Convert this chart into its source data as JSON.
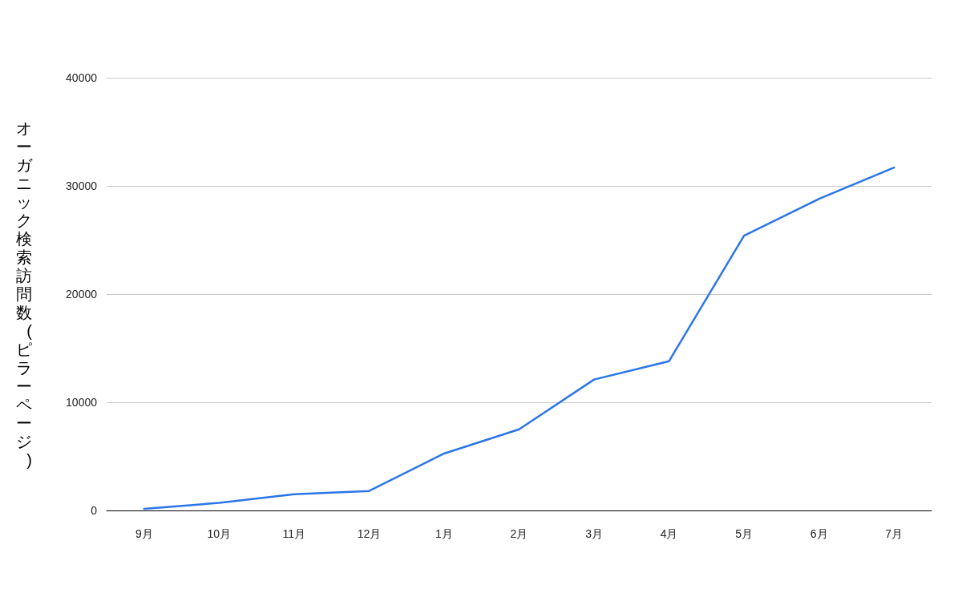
{
  "chart_data": {
    "type": "line",
    "ylabel": "オーガニック検索訪問数(ピラーページ)",
    "categories": [
      "9月",
      "10月",
      "11月",
      "12月",
      "1月",
      "2月",
      "3月",
      "4月",
      "5月",
      "6月",
      "7月"
    ],
    "series": [
      {
        "color": "#2a76e8",
        "values": [
          150,
          700,
          1500,
          1800,
          5260,
          7500,
          12100,
          13800,
          25400,
          28800,
          31700
        ]
      }
    ],
    "ylim": [
      0,
      40000
    ],
    "yticks": [
      0,
      10000,
      20000,
      30000,
      40000
    ],
    "grid": "y",
    "marker": "none",
    "line_style": "solid"
  }
}
